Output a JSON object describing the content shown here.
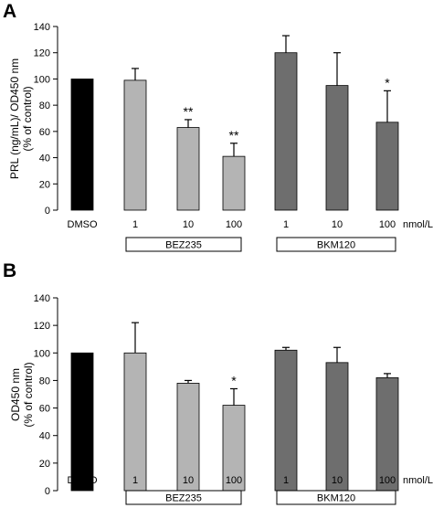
{
  "chart_data": [
    {
      "type": "bar",
      "panel": "A",
      "ylabel_lines": [
        "PRL (ng/mL)/ OD450 nm",
        "(% of control)"
      ],
      "ylim": [
        0,
        140
      ],
      "yticks": [
        0,
        20,
        40,
        60,
        80,
        100,
        120,
        140
      ],
      "categories": [
        "DMSO",
        "1",
        "10",
        "100",
        "1",
        "10",
        "100"
      ],
      "unit_label": "nmol/L",
      "values": [
        100,
        99,
        63,
        41,
        120,
        95,
        67
      ],
      "errors": [
        0,
        9,
        6,
        10,
        13,
        25,
        24
      ],
      "significance": [
        "",
        "",
        "**",
        "**",
        "",
        "",
        "*"
      ],
      "bar_colors": [
        "#000000",
        "#b4b4b4",
        "#b4b4b4",
        "#b4b4b4",
        "#6e6e6e",
        "#6e6e6e",
        "#6e6e6e"
      ],
      "groups": [
        {
          "label": "BEZ235",
          "from": 1,
          "to": 3
        },
        {
          "label": "BKM120",
          "from": 4,
          "to": 6
        }
      ]
    },
    {
      "type": "bar",
      "panel": "B",
      "ylabel_lines": [
        "OD450 nm",
        "(% of control)"
      ],
      "ylim": [
        0,
        140
      ],
      "yticks": [
        0,
        20,
        40,
        60,
        80,
        100,
        120,
        140
      ],
      "categories": [
        "DMSO",
        "1",
        "10",
        "100",
        "1",
        "10",
        "100"
      ],
      "unit_label": "nmol/L",
      "values": [
        100,
        100,
        78,
        62,
        102,
        93,
        82
      ],
      "errors": [
        0,
        22,
        2,
        12,
        2,
        11,
        3
      ],
      "significance": [
        "",
        "",
        "",
        "*",
        "",
        "",
        ""
      ],
      "bar_colors": [
        "#000000",
        "#b4b4b4",
        "#b4b4b4",
        "#b4b4b4",
        "#6e6e6e",
        "#6e6e6e",
        "#6e6e6e"
      ],
      "groups": [
        {
          "label": "BEZ235",
          "from": 1,
          "to": 3
        },
        {
          "label": "BKM120",
          "from": 4,
          "to": 6
        }
      ]
    }
  ]
}
